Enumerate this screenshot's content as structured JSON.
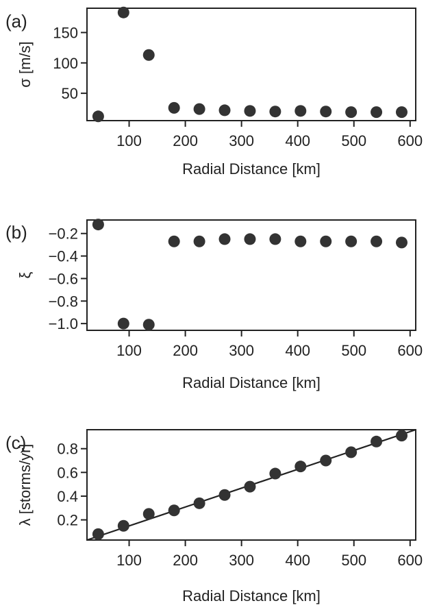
{
  "chart_data": [
    {
      "type": "scatter",
      "panel_label": "(a)",
      "xlabel": "Radial Distance [km]",
      "ylabel": "σ [m/s]",
      "xlim": [
        25,
        610
      ],
      "ylim": [
        5,
        190
      ],
      "xticks": [
        100,
        200,
        300,
        400,
        500,
        600
      ],
      "yticks": [
        50,
        100,
        150
      ],
      "x": [
        45,
        90,
        135,
        180,
        225,
        270,
        315,
        360,
        405,
        450,
        495,
        540,
        585
      ],
      "y": [
        12,
        183,
        113,
        26,
        24,
        22,
        21,
        20,
        21,
        20,
        19,
        19,
        19
      ]
    },
    {
      "type": "scatter",
      "panel_label": "(b)",
      "xlabel": "Radial Distance [km]",
      "ylabel": "ξ",
      "xlim": [
        25,
        610
      ],
      "ylim": [
        -1.06,
        -0.08
      ],
      "xticks": [
        100,
        200,
        300,
        400,
        500,
        600
      ],
      "yticks": [
        -1.0,
        -0.8,
        -0.6,
        -0.4,
        -0.2
      ],
      "ytick_labels": [
        "−1.0",
        "−0.8",
        "−0.6",
        "−0.4",
        "−0.2"
      ],
      "x": [
        45,
        90,
        135,
        180,
        225,
        270,
        315,
        360,
        405,
        450,
        495,
        540,
        585
      ],
      "y": [
        -0.12,
        -1.0,
        -1.01,
        -0.27,
        -0.27,
        -0.25,
        -0.25,
        -0.25,
        -0.27,
        -0.27,
        -0.27,
        -0.27,
        -0.28
      ]
    },
    {
      "type": "scatter",
      "panel_label": "(c)",
      "xlabel": "Radial Distance [km]",
      "ylabel": "λ [storms/yr]",
      "xlim": [
        25,
        610
      ],
      "ylim": [
        0.03,
        0.96
      ],
      "xticks": [
        100,
        200,
        300,
        400,
        500,
        600
      ],
      "yticks": [
        0.2,
        0.4,
        0.6,
        0.8
      ],
      "x": [
        45,
        90,
        135,
        180,
        225,
        270,
        315,
        360,
        405,
        450,
        495,
        540,
        585
      ],
      "y": [
        0.08,
        0.15,
        0.25,
        0.28,
        0.34,
        0.41,
        0.48,
        0.59,
        0.65,
        0.7,
        0.77,
        0.86,
        0.91
      ],
      "fit_line": {
        "x": [
          25,
          610
        ],
        "y": [
          0.03,
          0.96
        ]
      }
    }
  ]
}
